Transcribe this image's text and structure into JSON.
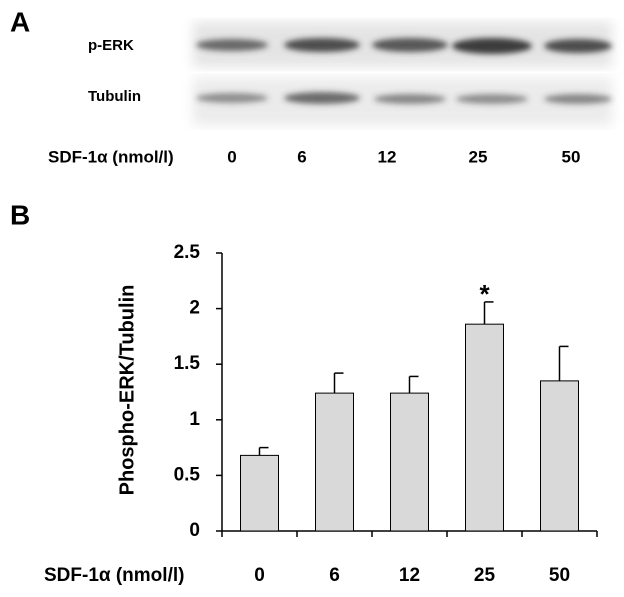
{
  "panel_a": {
    "label": "A",
    "rows": [
      "p-ERK",
      "Tubulin"
    ],
    "x_label": "SDF-1α (nmol/l)",
    "lanes": [
      "0",
      "6",
      "12",
      "25",
      "50"
    ]
  },
  "chart_data": {
    "type": "bar",
    "panel_label": "B",
    "y_label": "Phospho-ERK/Tubulin",
    "x_label": "SDF-1α (nmol/l)",
    "categories": [
      "0",
      "6",
      "12",
      "25",
      "50"
    ],
    "values": [
      0.68,
      1.24,
      1.24,
      1.86,
      1.35
    ],
    "errors": [
      0.07,
      0.18,
      0.15,
      0.2,
      0.31
    ],
    "color": "#d9d9d9",
    "ylim": [
      0,
      2.5
    ],
    "yticks": [
      0,
      0.5,
      1,
      1.5,
      2,
      2.5
    ],
    "annotations": [
      {
        "text": "*",
        "x": "25"
      }
    ]
  }
}
